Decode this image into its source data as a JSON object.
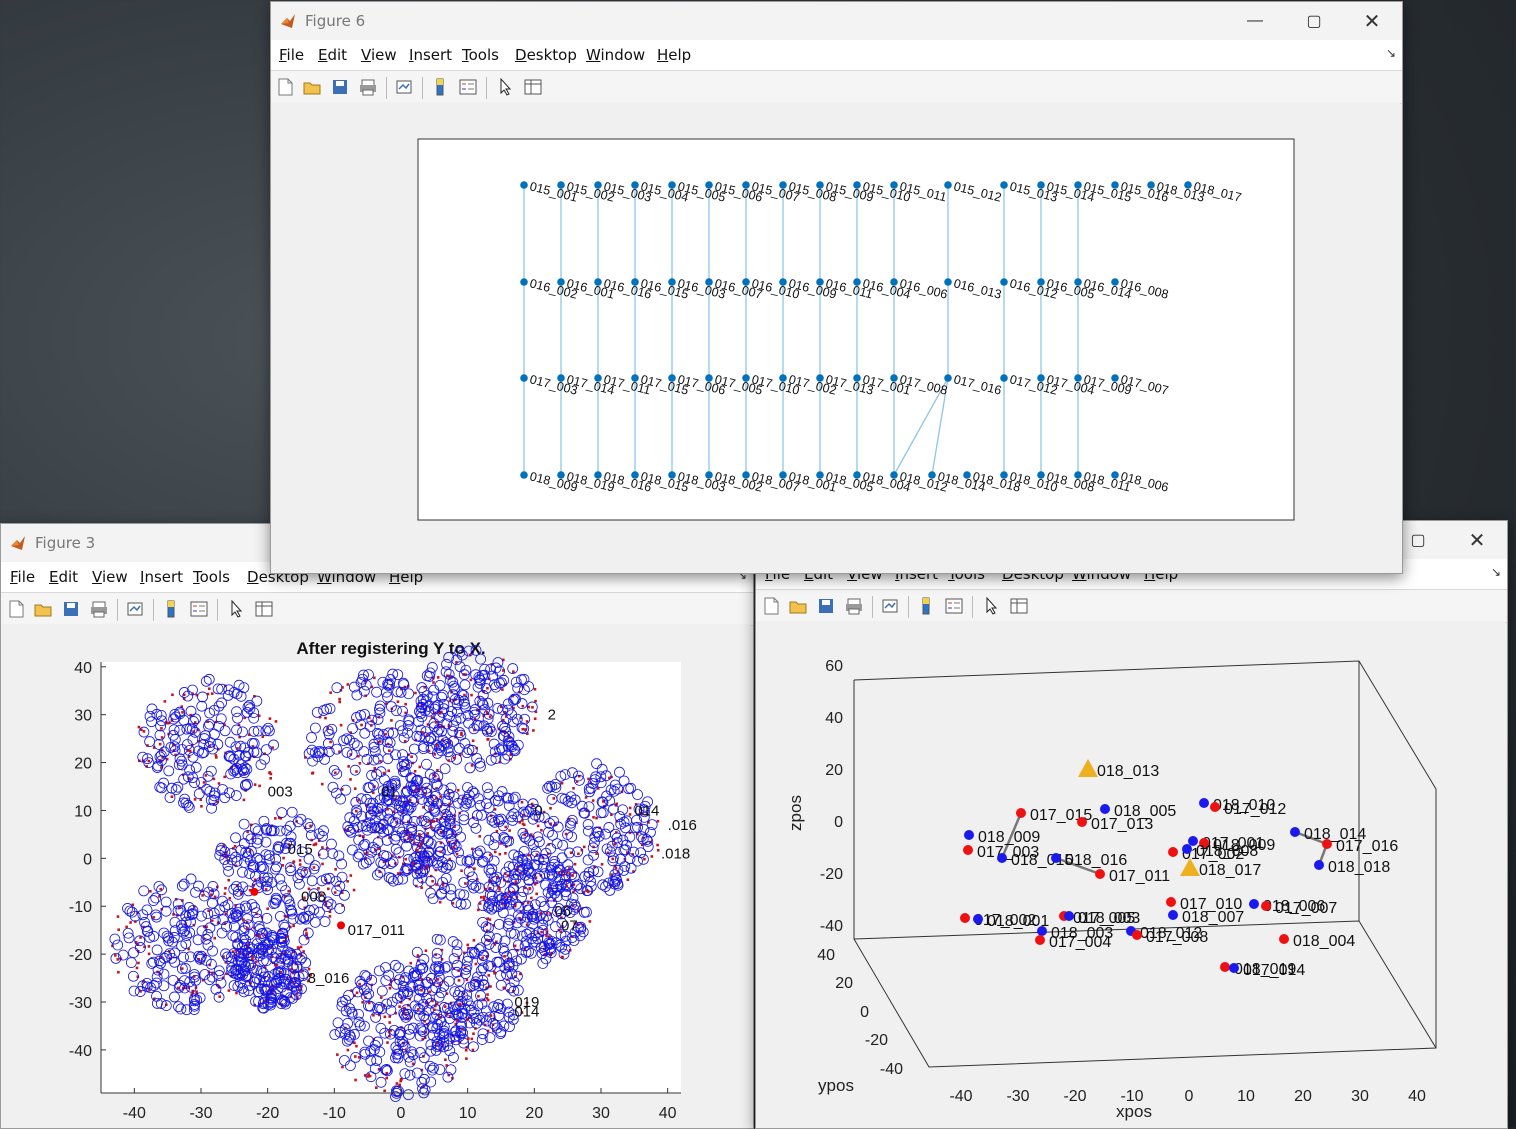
{
  "menus": [
    "File",
    "Edit",
    "View",
    "Insert",
    "Tools",
    "Desktop",
    "Window",
    "Help"
  ],
  "icons": [
    "new-figure-icon",
    "open-icon",
    "save-icon",
    "print-icon",
    "link-plot-icon",
    "colorbar-icon",
    "legend-icon",
    "pointer-icon",
    "property-inspector-icon"
  ],
  "window_controls": [
    "minimize-icon",
    "maximize-icon",
    "close-icon"
  ],
  "fig6": {
    "title": "Figure 6",
    "layers": [
      {
        "nodes": [
          "015_001",
          "015_002",
          "015_003",
          "015_004",
          "015_005",
          "015_006",
          "015_007",
          "015_008",
          "015_009",
          "015_010",
          "015_011",
          "015_012",
          "015_013",
          "015_014",
          "015_015",
          "015_016",
          "018_013",
          "018_017"
        ]
      },
      {
        "nodes": [
          "016_002",
          "016_001",
          "016_016",
          "016_015",
          "016_003",
          "016_007",
          "016_010",
          "016_009",
          "016_011",
          "016_004",
          "016_006",
          "016_013",
          "016_012",
          "016_005",
          "016_014",
          "016_008"
        ]
      },
      {
        "nodes": [
          "017_003",
          "017_014",
          "017_011",
          "017_015",
          "017_006",
          "017_005",
          "017_010",
          "017_002",
          "017_013",
          "017_001",
          "017_008",
          "017_016",
          "017_012",
          "017_004",
          "017_009",
          "017_007"
        ]
      },
      {
        "nodes": [
          "018_009",
          "018_019",
          "018_016",
          "018_015",
          "018_003",
          "018_002",
          "018_007",
          "018_001",
          "018_005",
          "018_004",
          "018_012",
          "018_014",
          "018_018",
          "018_010",
          "018_008",
          "018_011",
          "018_006"
        ]
      }
    ],
    "colors": {
      "node": "#0072bd",
      "edge": "#8ec5e8",
      "triangle": "#edb120"
    }
  },
  "fig3": {
    "title": "Figure 3",
    "chart_data": {
      "type": "scatter",
      "title": "After registering Y to X.",
      "xlim": [
        -45,
        42
      ],
      "ylim": [
        -49,
        41
      ],
      "xticks": [
        "-40",
        "-30",
        "-20",
        "-10",
        "0",
        "10",
        "20",
        "30",
        "40"
      ],
      "yticks": [
        "40",
        "30",
        "20",
        "10",
        "0",
        "-10",
        "-20",
        "-30",
        "-40"
      ],
      "clusters": [
        {
          "x": -29,
          "y": 24,
          "r": 10
        },
        {
          "x": -3,
          "y": 24,
          "r": 11
        },
        {
          "x": 11,
          "y": 31,
          "r": 9
        },
        {
          "x": 0,
          "y": 6,
          "r": 8
        },
        {
          "x": 11,
          "y": 2,
          "r": 10
        },
        {
          "x": 28,
          "y": 6,
          "r": 10
        },
        {
          "x": 20,
          "y": -11,
          "r": 8
        },
        {
          "x": -18,
          "y": -4,
          "r": 10
        },
        {
          "x": -33,
          "y": -18,
          "r": 10
        },
        {
          "x": -20,
          "y": -23,
          "r": 6
        },
        {
          "x": 9,
          "y": -28,
          "r": 9
        },
        {
          "x": 0,
          "y": -36,
          "r": 10
        }
      ],
      "labels": [
        {
          "x": 22,
          "y": 30,
          "t": "2"
        },
        {
          "x": -20,
          "y": 14,
          "t": "003"
        },
        {
          "x": -3,
          "y": 14,
          "t": "01"
        },
        {
          "x": 20,
          "y": 10,
          "t": "0"
        },
        {
          "x": 35,
          "y": 10,
          "t": "014"
        },
        {
          "x": 40,
          "y": 7,
          "t": ".016"
        },
        {
          "x": 39,
          "y": 1,
          "t": ".018"
        },
        {
          "x": -17,
          "y": 2,
          "t": "015"
        },
        {
          "x": -15,
          "y": -8,
          "t": "008"
        },
        {
          "x": -8,
          "y": -15,
          "t": "017_011"
        },
        {
          "x": -14,
          "y": -25,
          "t": "8_016"
        },
        {
          "x": 23,
          "y": -11,
          "t": "06"
        },
        {
          "x": 24,
          "y": -14,
          "t": "07"
        },
        {
          "x": 17,
          "y": -30,
          "t": "019"
        },
        {
          "x": 17,
          "y": -32,
          "t": "014"
        }
      ]
    }
  },
  "fig3d": {
    "chart_data": {
      "type": "scatter",
      "xlabel": "xpos",
      "ylabel": "ypos",
      "zlabel": "zpos",
      "xticks": [
        "-40",
        "-30",
        "-20",
        "-10",
        "0",
        "10",
        "20",
        "30",
        "40"
      ],
      "yticks": [
        "40",
        "20",
        "0",
        "-20",
        "-40"
      ],
      "zticks": [
        "60",
        "40",
        "20",
        "0",
        "-20",
        "-40"
      ],
      "points": [
        {
          "x": 1087,
          "y": 768,
          "c": "t",
          "t": "018_013"
        },
        {
          "x": 1189,
          "y": 867,
          "c": "t",
          "t": "018_017"
        },
        {
          "x": 1020,
          "y": 812,
          "c": "r",
          "t": "017_015"
        },
        {
          "x": 1104,
          "y": 808,
          "c": "b",
          "t": "018_005"
        },
        {
          "x": 1081,
          "y": 821,
          "c": "r",
          "t": "017_013"
        },
        {
          "x": 968,
          "y": 834,
          "c": "b",
          "t": "018_009"
        },
        {
          "x": 967,
          "y": 849,
          "c": "r",
          "t": "017_003"
        },
        {
          "x": 1001,
          "y": 857,
          "c": "b",
          "t": "018_015"
        },
        {
          "x": 1055,
          "y": 857,
          "c": "b",
          "t": "018_016"
        },
        {
          "x": 1099,
          "y": 873,
          "c": "r",
          "t": "017_011"
        },
        {
          "x": 1203,
          "y": 802,
          "c": "b",
          "t": "018_010"
        },
        {
          "x": 1214,
          "y": 806,
          "c": "r",
          "t": "017_012"
        },
        {
          "x": 1192,
          "y": 840,
          "c": "b",
          "t": "017_001"
        },
        {
          "x": 1203,
          "y": 842,
          "c": "r",
          "t": "018_009"
        },
        {
          "x": 1172,
          "y": 851,
          "c": "r",
          "t": "017_002"
        },
        {
          "x": 1186,
          "y": 848,
          "c": "b",
          "t": "018_008"
        },
        {
          "x": 1294,
          "y": 831,
          "c": "b",
          "t": "018_014"
        },
        {
          "x": 1326,
          "y": 843,
          "c": "r",
          "t": "017_016"
        },
        {
          "x": 1318,
          "y": 864,
          "c": "b",
          "t": "018_018"
        },
        {
          "x": 1170,
          "y": 901,
          "c": "r",
          "t": "017_010"
        },
        {
          "x": 1172,
          "y": 914,
          "c": "b",
          "t": "018_007"
        },
        {
          "x": 1253,
          "y": 903,
          "c": "b",
          "t": "018_006"
        },
        {
          "x": 1265,
          "y": 905,
          "c": "r",
          "t": "017_007"
        },
        {
          "x": 964,
          "y": 917,
          "c": "r",
          "t": "017_002"
        },
        {
          "x": 977,
          "y": 918,
          "c": "b",
          "t": "018_001"
        },
        {
          "x": 1063,
          "y": 915,
          "c": "r",
          "t": "017_005"
        },
        {
          "x": 1068,
          "y": 915,
          "c": "b",
          "t": "018_003"
        },
        {
          "x": 1041,
          "y": 930,
          "c": "b",
          "t": "018_003"
        },
        {
          "x": 1039,
          "y": 939,
          "c": "r",
          "t": "017_004"
        },
        {
          "x": 1130,
          "y": 930,
          "c": "b",
          "t": "018_012"
        },
        {
          "x": 1136,
          "y": 934,
          "c": "r",
          "t": "017_008"
        },
        {
          "x": 1283,
          "y": 938,
          "c": "r",
          "t": "018_004"
        },
        {
          "x": 1224,
          "y": 966,
          "c": "r",
          "t": "018_019"
        },
        {
          "x": 1233,
          "y": 967,
          "c": "b",
          "t": "017_014"
        }
      ]
    }
  }
}
